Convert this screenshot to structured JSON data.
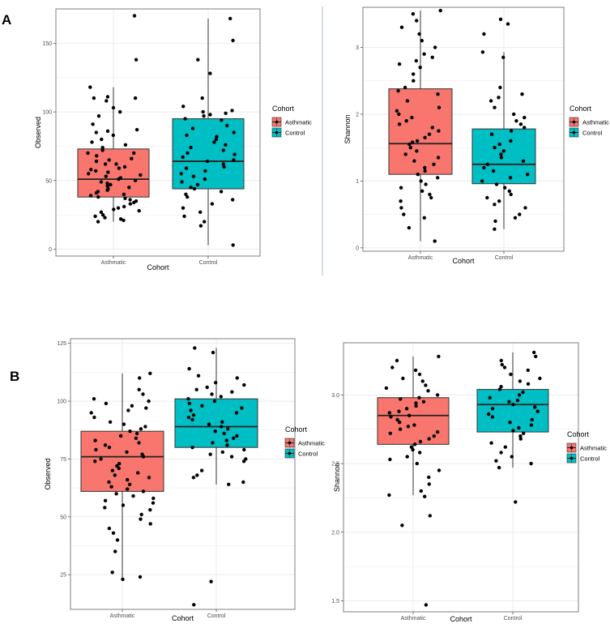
{
  "figure": {
    "panel_labels": [
      "A",
      "B"
    ]
  },
  "colors": {
    "Asthmatic": "#f8766d",
    "Control": "#00bfc4",
    "grid": "#ebebeb",
    "border": "#7f7f7f",
    "divider": "#c9d2e4"
  },
  "chart_data": [
    {
      "type": "box",
      "panel": "A",
      "title": "",
      "xlabel": "Cohort",
      "ylabel": "Observed",
      "categories": [
        "Asthmatic",
        "Control"
      ],
      "ylim": [
        -5,
        175
      ],
      "yticks": [
        0,
        50,
        100,
        150
      ],
      "legend": {
        "title": "Cohort",
        "entries": [
          "Asthmatic",
          "Control"
        ],
        "position": "right"
      },
      "boxes": [
        {
          "name": "Asthmatic",
          "whisker_low": 20,
          "q1": 38,
          "median": 51,
          "q3": 73,
          "whisker_high": 118
        },
        {
          "name": "Control",
          "whisker_low": 3,
          "q1": 44,
          "median": 64,
          "q3": 95,
          "whisker_high": 168
        }
      ],
      "points": [
        {
          "group": "Asthmatic",
          "y": [
            170,
            138,
            118,
            111,
            110,
            110,
            108,
            103,
            100,
            97,
            91,
            87,
            86,
            85,
            83,
            80,
            78,
            76,
            74,
            72,
            70,
            70,
            68,
            66,
            65,
            64,
            62,
            62,
            60,
            59,
            58,
            57,
            56,
            55,
            54,
            53,
            52,
            51,
            50,
            49,
            48,
            47,
            46,
            45,
            44,
            43,
            42,
            41,
            40,
            39,
            38,
            37,
            36,
            35,
            34,
            33,
            31,
            30,
            29,
            28,
            27,
            25,
            24,
            23,
            22,
            21,
            20
          ]
        },
        {
          "group": "Control",
          "y": [
            168,
            152,
            138,
            128,
            110,
            104,
            101,
            100,
            99,
            98,
            97,
            95,
            94,
            90,
            88,
            85,
            83,
            82,
            80,
            78,
            76,
            74,
            72,
            70,
            69,
            67,
            65,
            64,
            62,
            60,
            59,
            57,
            55,
            53,
            51,
            49,
            47,
            45,
            44,
            42,
            40,
            38,
            36,
            33,
            30,
            27,
            24,
            20,
            17,
            3
          ]
        }
      ]
    },
    {
      "type": "box",
      "panel": "A",
      "title": "",
      "xlabel": "Cohort",
      "ylabel": "Shannon",
      "categories": [
        "Asthmatic",
        "Control"
      ],
      "ylim": [
        -0.05,
        3.6
      ],
      "yticks": [
        0,
        1,
        2,
        3
      ],
      "legend": {
        "title": "Cohort",
        "entries": [
          "Asthmatic",
          "Control"
        ],
        "position": "right"
      },
      "boxes": [
        {
          "name": "Asthmatic",
          "whisker_low": 0.1,
          "q1": 1.1,
          "median": 1.56,
          "q3": 2.38,
          "whisker_high": 3.55
        },
        {
          "name": "Control",
          "whisker_low": 0.28,
          "q1": 0.96,
          "median": 1.25,
          "q3": 1.78,
          "whisker_high": 2.93
        }
      ],
      "points": [
        {
          "group": "Asthmatic",
          "y": [
            3.55,
            3.5,
            3.4,
            3.3,
            3.2,
            3.1,
            3.0,
            2.9,
            2.85,
            2.8,
            2.75,
            2.7,
            2.6,
            2.5,
            2.4,
            2.35,
            2.3,
            2.2,
            2.1,
            2.05,
            2.0,
            1.95,
            1.9,
            1.85,
            1.8,
            1.75,
            1.7,
            1.65,
            1.6,
            1.58,
            1.55,
            1.5,
            1.45,
            1.4,
            1.35,
            1.3,
            1.25,
            1.2,
            1.15,
            1.1,
            1.05,
            1.0,
            0.95,
            0.9,
            0.85,
            0.8,
            0.75,
            0.7,
            0.6,
            0.5,
            0.45,
            0.3,
            0.1
          ]
        },
        {
          "group": "Control",
          "y": [
            3.42,
            3.35,
            3.2,
            2.93,
            2.85,
            2.4,
            2.3,
            2.25,
            2.2,
            2.1,
            2.0,
            1.95,
            1.9,
            1.85,
            1.8,
            1.75,
            1.7,
            1.6,
            1.55,
            1.5,
            1.45,
            1.4,
            1.35,
            1.3,
            1.25,
            1.2,
            1.15,
            1.1,
            1.05,
            1.0,
            0.95,
            0.9,
            0.85,
            0.8,
            0.75,
            0.7,
            0.65,
            0.6,
            0.5,
            0.45,
            0.4,
            0.28
          ]
        }
      ]
    },
    {
      "type": "box",
      "panel": "B",
      "title": "",
      "xlabel": "Cohort",
      "ylabel": "Observed",
      "categories": [
        "Asthmatic",
        "Control"
      ],
      "ylim": [
        10,
        127
      ],
      "yticks": [
        25,
        50,
        75,
        100,
        125
      ],
      "legend": {
        "title": "Cohort",
        "entries": [
          "Asthmatic",
          "Control"
        ],
        "position": "right"
      },
      "boxes": [
        {
          "name": "Asthmatic",
          "whisker_low": 23,
          "q1": 61,
          "median": 76,
          "q3": 87,
          "whisker_high": 112
        },
        {
          "name": "Control",
          "whisker_low": 64,
          "q1": 80,
          "median": 89,
          "q3": 101,
          "whisker_high": 123
        }
      ],
      "points": [
        {
          "group": "Asthmatic",
          "y": [
            112,
            110,
            105,
            103,
            101,
            100,
            99,
            98,
            97,
            96,
            95,
            93,
            91,
            90,
            89,
            88,
            87,
            86,
            85,
            84,
            83,
            82,
            81,
            80,
            79,
            78,
            77,
            76,
            75,
            74,
            73,
            72,
            71,
            70,
            69,
            68,
            67,
            66,
            65,
            64,
            63,
            62,
            61,
            60,
            59,
            58,
            57,
            56,
            55,
            54,
            53,
            51,
            49,
            47,
            45,
            43,
            40,
            35,
            26,
            24,
            23
          ]
        },
        {
          "group": "Control",
          "y": [
            123,
            121,
            114,
            111,
            110,
            108,
            107,
            106,
            105,
            104,
            103,
            102,
            101,
            100,
            99,
            98,
            97,
            96,
            95,
            94,
            93,
            92,
            91,
            90,
            89,
            88,
            87,
            86,
            85,
            84,
            83,
            82,
            81,
            80,
            79,
            78,
            77,
            76,
            75,
            74,
            70,
            68,
            67,
            65,
            64,
            22,
            12
          ]
        }
      ]
    },
    {
      "type": "box",
      "panel": "B",
      "title": "",
      "xlabel": "Cohort",
      "ylabel": "Shannon",
      "categories": [
        "Asthmatic",
        "Control"
      ],
      "ylim": [
        1.42,
        3.38
      ],
      "yticks": [
        1.5,
        2.0,
        2.5,
        3.0
      ],
      "legend": {
        "title": "Cohort",
        "entries": [
          "Asthmatic",
          "Control"
        ],
        "position": "right"
      },
      "boxes": [
        {
          "name": "Asthmatic",
          "whisker_low": 2.27,
          "q1": 2.64,
          "median": 2.85,
          "q3": 2.98,
          "whisker_high": 3.28
        },
        {
          "name": "Control",
          "whisker_low": 2.47,
          "q1": 2.73,
          "median": 2.93,
          "q3": 3.04,
          "whisker_high": 3.31
        }
      ],
      "points": [
        {
          "group": "Asthmatic",
          "y": [
            3.28,
            3.25,
            3.2,
            3.18,
            3.15,
            3.12,
            3.1,
            3.07,
            3.05,
            3.03,
            3.0,
            2.98,
            2.97,
            2.95,
            2.94,
            2.92,
            2.9,
            2.88,
            2.87,
            2.85,
            2.84,
            2.82,
            2.8,
            2.78,
            2.77,
            2.75,
            2.73,
            2.72,
            2.7,
            2.68,
            2.66,
            2.64,
            2.62,
            2.6,
            2.58,
            2.55,
            2.53,
            2.5,
            2.45,
            2.4,
            2.35,
            2.3,
            2.27,
            2.26,
            2.12,
            2.05,
            1.47
          ]
        },
        {
          "group": "Control",
          "y": [
            3.31,
            3.28,
            3.25,
            3.22,
            3.2,
            3.18,
            3.15,
            3.12,
            3.1,
            3.08,
            3.06,
            3.04,
            3.02,
            3.0,
            2.98,
            2.96,
            2.95,
            2.93,
            2.91,
            2.9,
            2.88,
            2.86,
            2.84,
            2.82,
            2.8,
            2.78,
            2.76,
            2.74,
            2.72,
            2.7,
            2.68,
            2.65,
            2.62,
            2.58,
            2.55,
            2.52,
            2.5,
            2.47,
            2.22
          ]
        }
      ]
    }
  ]
}
